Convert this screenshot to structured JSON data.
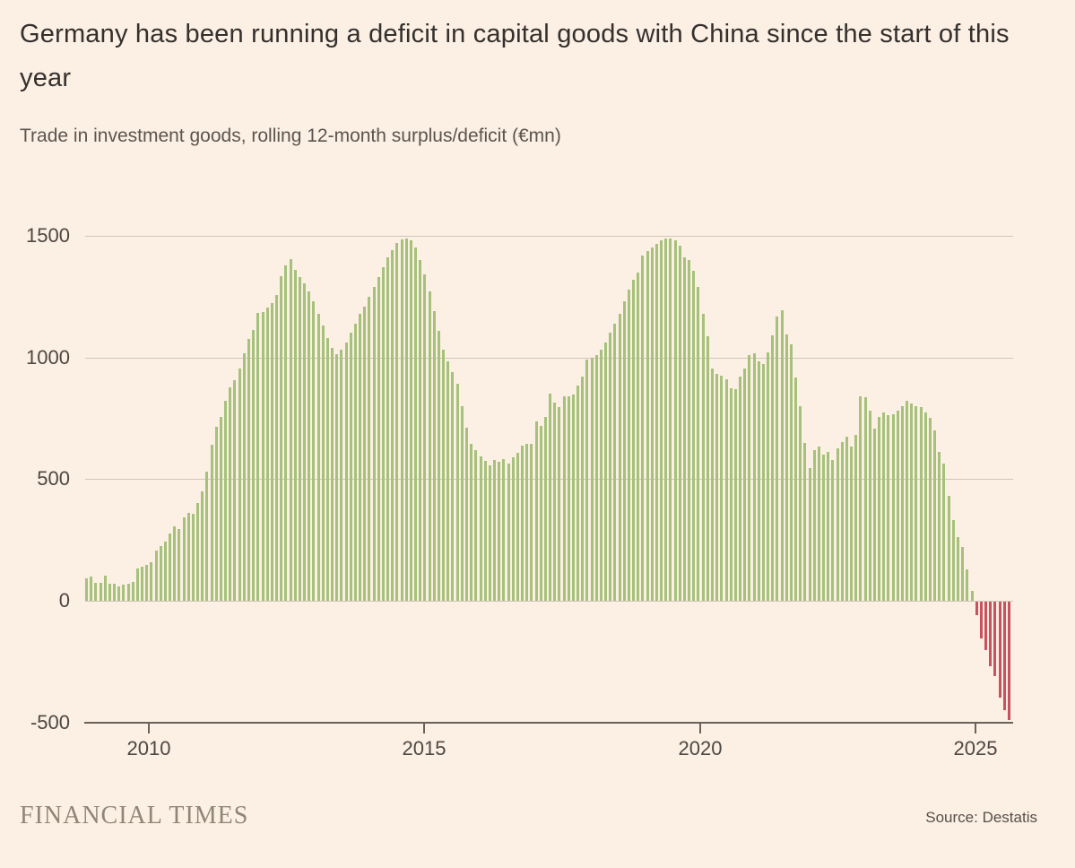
{
  "title": "Germany has been running a deficit in capital goods with China since the start of this year",
  "subtitle": "Trade in investment goods, rolling 12-month surplus/deficit (€mn)",
  "footer": {
    "brand": "FINANCIAL TIMES",
    "source": "Source: Destatis"
  },
  "colors": {
    "background": "#fcefe3",
    "positive_bar": "#a5c17b",
    "negative_bar": "#c8525d",
    "gridline": "#d0c6bb",
    "axis": "#6a635d"
  },
  "chart_data": {
    "type": "bar",
    "title": "Trade in investment goods, rolling 12-month surplus/deficit (€mn)",
    "unit": "€mn",
    "frequency": "monthly",
    "start_month": "2009-01",
    "end_month": "2025-08",
    "grid": true,
    "ylim": [
      -500,
      1500
    ],
    "y_ticks": [
      1500,
      1000,
      500,
      0,
      -500
    ],
    "x_tick_years": [
      2010,
      2015,
      2020,
      2025
    ],
    "values": [
      92,
      99,
      74,
      74,
      103,
      70,
      70,
      59,
      66,
      70,
      77,
      133,
      140,
      147,
      158,
      206,
      225,
      243,
      276,
      306,
      295,
      343,
      361,
      357,
      400,
      450,
      530,
      640,
      715,
      755,
      820,
      875,
      905,
      955,
      1015,
      1075,
      1113,
      1183,
      1186,
      1205,
      1223,
      1256,
      1334,
      1378,
      1404,
      1359,
      1330,
      1304,
      1270,
      1230,
      1180,
      1130,
      1080,
      1040,
      1012,
      1030,
      1060,
      1100,
      1140,
      1180,
      1210,
      1250,
      1290,
      1330,
      1370,
      1410,
      1440,
      1470,
      1485,
      1490,
      1480,
      1450,
      1400,
      1340,
      1270,
      1190,
      1110,
      1030,
      985,
      940,
      890,
      800,
      710,
      645,
      619,
      593,
      575,
      556,
      578,
      571,
      582,
      564,
      589,
      608,
      637,
      644,
      645,
      737,
      718,
      755,
      851,
      814,
      796,
      840,
      840,
      847,
      884,
      921,
      990,
      1000,
      1010,
      1031,
      1060,
      1100,
      1140,
      1180,
      1230,
      1280,
      1320,
      1350,
      1420,
      1435,
      1450,
      1465,
      1480,
      1490,
      1488,
      1480,
      1460,
      1410,
      1400,
      1355,
      1290,
      1180,
      1085,
      954,
      932,
      924,
      910,
      873,
      869,
      920,
      954,
      1009,
      1016,
      983,
      972,
      1020,
      1090,
      1168,
      1193,
      1094,
      1053,
      917,
      800,
      650,
      545,
      619,
      633,
      600,
      611,
      578,
      626,
      652,
      674,
      633,
      681,
      840,
      836,
      781,
      707,
      755,
      773,
      762,
      766,
      781,
      799,
      821,
      810,
      800,
      795,
      774,
      750,
      700,
      610,
      565,
      430,
      330,
      260,
      220,
      130,
      41,
      -55,
      -150,
      -200,
      -265,
      -305,
      -395,
      -445,
      -485
    ]
  }
}
